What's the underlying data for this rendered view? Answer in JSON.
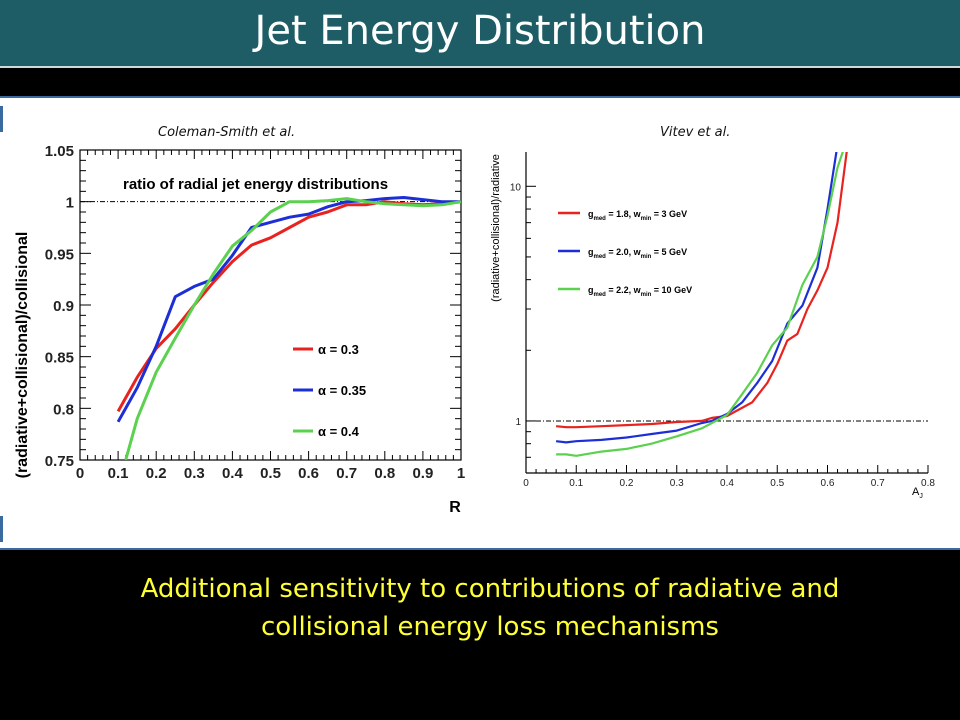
{
  "slide": {
    "title": "Jet Energy Distribution",
    "caption_line1": "Additional sensitivity to contributions of radiative and",
    "caption_line2": "collisional energy loss mechanisms",
    "colors": {
      "title_bar": "#1f5d66",
      "caption": "#ffff33",
      "panel_border": "#3a6aa0"
    }
  },
  "chart_data": [
    {
      "type": "line",
      "author": "Coleman-Smith et al.",
      "title": "ratio of radial jet energy distributions",
      "xlabel": "R",
      "ylabel": "(radiative+collisional)/collisional",
      "xlim": [
        0,
        1
      ],
      "ylim": [
        0.75,
        1.05
      ],
      "xticks": [
        "0",
        "0.1",
        "0.2",
        "0.3",
        "0.4",
        "0.5",
        "0.6",
        "0.7",
        "0.8",
        "0.9",
        "1"
      ],
      "yticks": [
        "0.75",
        "0.8",
        "0.85",
        "0.9",
        "0.95",
        "1",
        "1.05"
      ],
      "reference_line": 1,
      "legend_position": "right-middle",
      "series": [
        {
          "name": "α = 0.3",
          "color": "#e8231f",
          "x": [
            0.1,
            0.15,
            0.2,
            0.25,
            0.3,
            0.35,
            0.4,
            0.45,
            0.5,
            0.55,
            0.6,
            0.65,
            0.7,
            0.75,
            0.8,
            0.85,
            0.9,
            0.95,
            1.0
          ],
          "y": [
            0.797,
            0.83,
            0.858,
            0.877,
            0.9,
            0.922,
            0.942,
            0.958,
            0.965,
            0.975,
            0.985,
            0.99,
            0.997,
            0.997,
            1.0,
            0.998,
            0.997,
            0.998,
            1.0
          ]
        },
        {
          "name": "α = 0.35",
          "color": "#1c2fd6",
          "x": [
            0.1,
            0.15,
            0.2,
            0.25,
            0.3,
            0.35,
            0.4,
            0.45,
            0.5,
            0.55,
            0.6,
            0.65,
            0.7,
            0.75,
            0.8,
            0.85,
            0.9,
            0.95,
            1.0
          ],
          "y": [
            0.787,
            0.82,
            0.86,
            0.908,
            0.918,
            0.925,
            0.948,
            0.975,
            0.98,
            0.985,
            0.988,
            0.995,
            1.0,
            1.001,
            1.003,
            1.004,
            1.002,
            1.0,
            1.0
          ]
        },
        {
          "name": "α = 0.4",
          "color": "#5bd14f",
          "x": [
            0.12,
            0.15,
            0.2,
            0.25,
            0.3,
            0.35,
            0.4,
            0.45,
            0.5,
            0.55,
            0.6,
            0.65,
            0.7,
            0.75,
            0.8,
            0.85,
            0.9,
            0.95,
            1.0
          ],
          "y": [
            0.75,
            0.79,
            0.835,
            0.868,
            0.9,
            0.93,
            0.957,
            0.972,
            0.99,
            1.0,
            1.0,
            1.001,
            1.003,
            1.0,
            0.998,
            0.997,
            0.996,
            0.997,
            1.0
          ]
        }
      ]
    },
    {
      "type": "line",
      "author": "Vitev et al.",
      "xlabel": "A",
      "xlabel_sub": "J",
      "ylabel": "(radiative+collisional)/radiative",
      "xlim": [
        0,
        0.8
      ],
      "ylim": [
        0.6,
        14
      ],
      "log_y": true,
      "xticks": [
        "0",
        "0.1",
        "0.2",
        "0.3",
        "0.4",
        "0.5",
        "0.6",
        "0.7",
        "0.8"
      ],
      "yticks": [
        "1",
        "10"
      ],
      "reference_line": 1,
      "legend_position": "top-left",
      "series": [
        {
          "name": "g",
          "name_sub": "med",
          "name_mid": " = 1.8, w",
          "name_sub2": "min",
          "name_end": " = 3 GeV",
          "color": "#e8231f",
          "x": [
            0.06,
            0.08,
            0.1,
            0.15,
            0.2,
            0.25,
            0.3,
            0.35,
            0.37,
            0.4,
            0.45,
            0.48,
            0.5,
            0.52,
            0.54,
            0.56,
            0.58,
            0.6,
            0.62,
            0.64
          ],
          "y": [
            0.95,
            0.94,
            0.94,
            0.95,
            0.96,
            0.97,
            0.99,
            1.0,
            1.03,
            1.05,
            1.2,
            1.45,
            1.75,
            2.2,
            2.35,
            3.0,
            3.6,
            4.5,
            7.0,
            15.0
          ]
        },
        {
          "name": "g",
          "name_sub": "med",
          "name_mid": " = 2.0, w",
          "name_sub2": "min",
          "name_end": " = 5 GeV",
          "color": "#1c2fd6",
          "x": [
            0.06,
            0.08,
            0.1,
            0.15,
            0.2,
            0.25,
            0.3,
            0.35,
            0.37,
            0.4,
            0.43,
            0.46,
            0.49,
            0.52,
            0.55,
            0.58,
            0.6,
            0.62
          ],
          "y": [
            0.82,
            0.81,
            0.82,
            0.83,
            0.85,
            0.88,
            0.91,
            0.98,
            1.0,
            1.07,
            1.2,
            1.45,
            1.8,
            2.6,
            3.1,
            4.5,
            8.0,
            15.0
          ]
        },
        {
          "name": "g",
          "name_sub": "med",
          "name_mid": " = 2.2, w",
          "name_sub2": "min",
          "name_end": " = 10 GeV",
          "color": "#5bd14f",
          "x": [
            0.06,
            0.08,
            0.1,
            0.15,
            0.2,
            0.25,
            0.3,
            0.35,
            0.37,
            0.4,
            0.43,
            0.46,
            0.49,
            0.52,
            0.55,
            0.58,
            0.6,
            0.62,
            0.635
          ],
          "y": [
            0.72,
            0.72,
            0.71,
            0.74,
            0.76,
            0.8,
            0.86,
            0.93,
            0.98,
            1.06,
            1.3,
            1.6,
            2.1,
            2.5,
            3.8,
            5.0,
            7.5,
            12.0,
            15.0
          ]
        }
      ]
    }
  ]
}
